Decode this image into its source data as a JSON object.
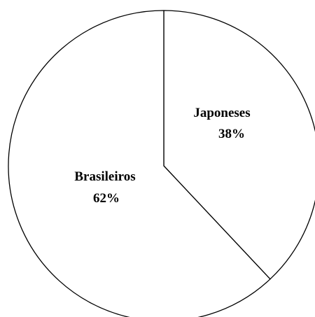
{
  "chart_data": {
    "type": "pie",
    "categories": [
      "Japoneses",
      "Brasileiros"
    ],
    "values": [
      38,
      62
    ],
    "labels": [
      "38%",
      "62%"
    ],
    "title": "",
    "legend": "none",
    "colors": {
      "fill": "#ffffff",
      "stroke": "#000000"
    }
  }
}
